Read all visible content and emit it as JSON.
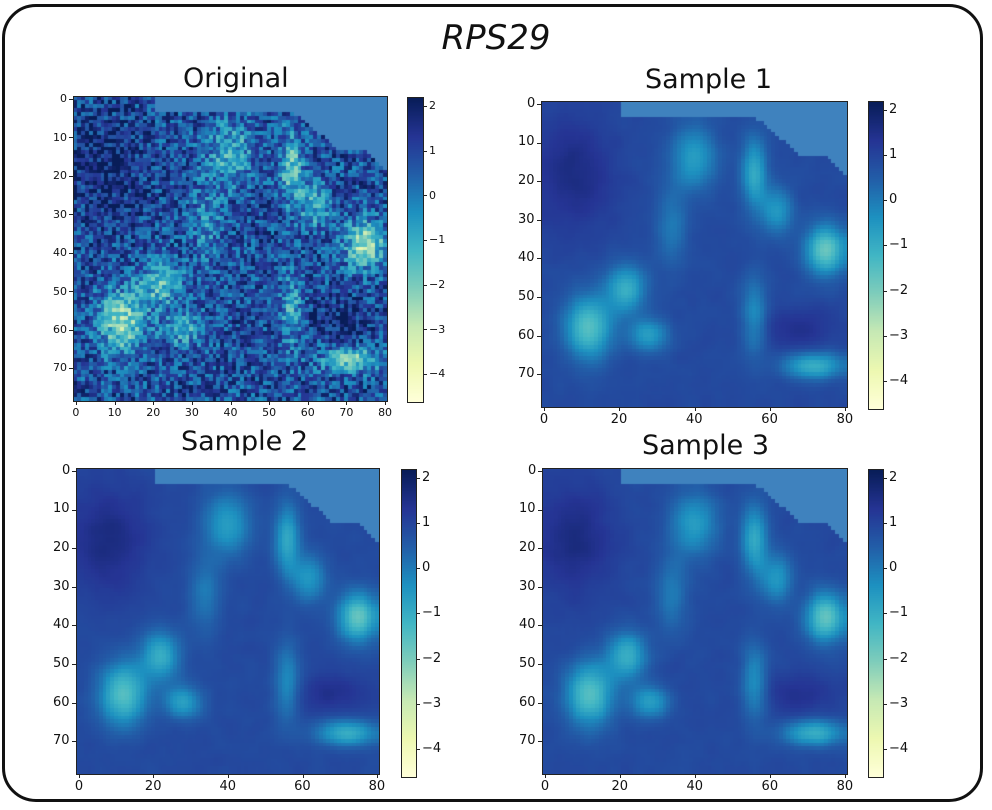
{
  "chart_data": {
    "type": "heatmap",
    "title": "RPS29",
    "colormap": "YlGnBu",
    "colorbar_range": [
      -4.6,
      2.2
    ],
    "panels": [
      {
        "id": "original",
        "title": "Original",
        "x_ticks": [
          "0",
          "10",
          "20",
          "30",
          "40",
          "50",
          "60",
          "70",
          "80"
        ],
        "y_ticks": [
          "0",
          "10",
          "20",
          "30",
          "40",
          "50",
          "60",
          "70"
        ],
        "colorbar_ticks": [
          "2",
          "1",
          "0",
          "−1",
          "−2",
          "−3",
          "−4"
        ]
      },
      {
        "id": "sample1",
        "title": "Sample 1",
        "x_ticks": [
          "0",
          "20",
          "40",
          "60",
          "80"
        ],
        "y_ticks": [
          "0",
          "10",
          "20",
          "30",
          "40",
          "50",
          "60",
          "70"
        ],
        "colorbar_ticks": [
          "2",
          "1",
          "0",
          "−1",
          "−2",
          "−3",
          "−4"
        ]
      },
      {
        "id": "sample2",
        "title": "Sample 2",
        "x_ticks": [
          "0",
          "20",
          "40",
          "60",
          "80"
        ],
        "y_ticks": [
          "0",
          "10",
          "20",
          "30",
          "40",
          "50",
          "60",
          "70"
        ],
        "colorbar_ticks": [
          "2",
          "1",
          "0",
          "−1",
          "−2",
          "−3",
          "−4"
        ]
      },
      {
        "id": "sample3",
        "title": "Sample 3",
        "x_ticks": [
          "0",
          "20",
          "40",
          "60",
          "80"
        ],
        "y_ticks": [
          "0",
          "10",
          "20",
          "30",
          "40",
          "50",
          "60",
          "70"
        ],
        "colorbar_ticks": [
          "2",
          "1",
          "0",
          "−1",
          "−2",
          "−3",
          "−4"
        ]
      }
    ]
  }
}
